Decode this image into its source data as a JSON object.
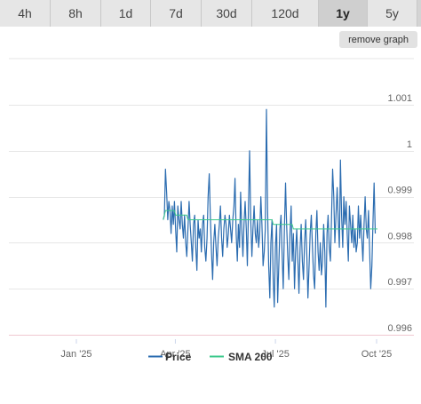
{
  "tabs": [
    {
      "label": "4h",
      "active": false
    },
    {
      "label": "8h",
      "active": false
    },
    {
      "label": "1d",
      "active": false
    },
    {
      "label": "7d",
      "active": false
    },
    {
      "label": "30d",
      "active": false
    },
    {
      "label": "120d",
      "active": false
    },
    {
      "label": "1y",
      "active": true
    },
    {
      "label": "5y",
      "active": false
    }
  ],
  "remove_graph_label": "remove graph",
  "colors": {
    "price": "#2b6cb0",
    "sma": "#3cc98c",
    "grid": "#e6e6e6",
    "grid_bottom": "#f0c8d0"
  },
  "chart_data": {
    "type": "line",
    "x_ticks": [
      "Jan '25",
      "Apr '25",
      "Jul '25",
      "Oct '25"
    ],
    "y_ticks": [
      0.996,
      0.997,
      0.998,
      0.999,
      1.0,
      1.001
    ],
    "y_tick_labels": [
      "0.996",
      "0.997",
      "0.998",
      "0.999",
      "1",
      "1.001"
    ],
    "ylim": [
      0.996,
      1.0015
    ],
    "x_range_days": [
      -85,
      324
    ],
    "grid": true,
    "legend": "bottom-center",
    "series": [
      {
        "name": "Price",
        "start_day": 79,
        "step_days": 1.02,
        "values": [
          0.9985,
          0.9986,
          0.9996,
          0.9991,
          0.9985,
          0.9989,
          0.9987,
          0.9982,
          0.9988,
          0.9984,
          0.9989,
          0.9983,
          0.9978,
          0.9988,
          0.9985,
          0.9983,
          0.9989,
          0.9984,
          0.9981,
          0.9986,
          0.998,
          0.9977,
          0.9983,
          0.9989,
          0.9984,
          0.998,
          0.9976,
          0.9984,
          0.9986,
          0.9979,
          0.9974,
          0.9985,
          0.9981,
          0.9983,
          0.9978,
          0.9984,
          0.9986,
          0.9979,
          0.9976,
          0.9981,
          0.999,
          0.9995,
          0.9986,
          0.9978,
          0.9972,
          0.998,
          0.9984,
          0.9979,
          0.9975,
          0.9981,
          0.9984,
          0.9988,
          0.9981,
          0.9977,
          0.9983,
          0.9986,
          0.9984,
          0.9979,
          0.9982,
          0.9986,
          0.9983,
          0.998,
          0.9985,
          0.9988,
          0.9994,
          0.9982,
          0.9976,
          0.9984,
          0.9979,
          0.9991,
          0.9983,
          0.9977,
          0.9984,
          0.9989,
          0.9983,
          0.9975,
          0.9988,
          1.0,
          0.9985,
          0.9977,
          0.9983,
          0.9988,
          0.9982,
          0.998,
          0.9985,
          0.9979,
          0.9982,
          0.999,
          0.9984,
          0.9975,
          0.9978,
          0.9983,
          1.0009,
          0.9987,
          0.9975,
          0.9968,
          0.998,
          0.9985,
          0.9972,
          0.9966,
          0.9979,
          0.9984,
          0.9967,
          0.9975,
          0.9983,
          0.9986,
          0.9977,
          0.997,
          0.9983,
          0.9993,
          0.9984,
          0.9977,
          0.9972,
          0.9982,
          0.9988,
          0.9976,
          0.9982,
          0.997,
          0.9978,
          0.9983,
          0.9976,
          0.9969,
          0.9979,
          0.9984,
          0.9976,
          0.9972,
          0.998,
          0.9985,
          0.9977,
          0.9968,
          0.9975,
          0.9982,
          0.9986,
          0.9979,
          0.9973,
          0.997,
          0.9982,
          0.9987,
          0.9978,
          0.9974,
          0.998,
          0.9973,
          0.9976,
          0.9984,
          0.9978,
          0.9966,
          0.9982,
          0.9986,
          0.9979,
          0.9976,
          0.9985,
          0.9996,
          0.999,
          0.998,
          0.9986,
          0.9992,
          0.9985,
          0.9979,
          0.9998,
          0.9986,
          0.9979,
          0.999,
          0.9984,
          0.9989,
          0.9982,
          0.9976,
          0.9988,
          0.9984,
          0.998,
          0.9986,
          0.9979,
          0.9983,
          0.9978,
          0.998,
          0.9988,
          0.9981,
          0.9986,
          0.9981,
          0.9976,
          0.9984,
          0.999,
          0.9983,
          0.9981,
          0.9987,
          0.9978,
          0.997,
          0.9975,
          0.9985,
          0.9993,
          0.9982
        ]
      },
      {
        "name": "SMA 200",
        "start_day": 79,
        "step_days": 1.02,
        "values": [
          0.9985,
          0.9986,
          0.9987,
          0.9987,
          0.9987,
          0.9987,
          0.9987,
          0.9987,
          0.9987,
          0.9987,
          0.9987,
          0.9986,
          0.9986,
          0.9986,
          0.9986,
          0.9986,
          0.9986,
          0.9986,
          0.9986,
          0.9986,
          0.9986,
          0.9986,
          0.9985,
          0.9985,
          0.9985,
          0.9985,
          0.9985,
          0.9985,
          0.9985,
          0.9985,
          0.9985,
          0.9985,
          0.9985,
          0.9985,
          0.9985,
          0.9985,
          0.9985,
          0.9985,
          0.9985,
          0.9985,
          0.9985,
          0.9985,
          0.9985,
          0.9985,
          0.9985,
          0.9985,
          0.9985,
          0.9985,
          0.9985,
          0.9985,
          0.9985,
          0.9985,
          0.9985,
          0.9985,
          0.9985,
          0.9985,
          0.9985,
          0.9985,
          0.9985,
          0.9985,
          0.9985,
          0.9985,
          0.9985,
          0.9985,
          0.9985,
          0.9985,
          0.9985,
          0.9985,
          0.9985,
          0.9985,
          0.9985,
          0.9985,
          0.9985,
          0.9985,
          0.9985,
          0.9985,
          0.9985,
          0.9985,
          0.9985,
          0.9985,
          0.9985,
          0.9985,
          0.9985,
          0.9985,
          0.9985,
          0.9985,
          0.9985,
          0.9985,
          0.9985,
          0.9985,
          0.9985,
          0.9985,
          0.9985,
          0.9985,
          0.9985,
          0.9985,
          0.9985,
          0.9985,
          0.9984,
          0.9984,
          0.9984,
          0.9984,
          0.9984,
          0.9984,
          0.9984,
          0.9984,
          0.9984,
          0.9984,
          0.9984,
          0.9984,
          0.9984,
          0.9984,
          0.9984,
          0.9984,
          0.9984,
          0.9984,
          0.9983,
          0.9983,
          0.9983,
          0.9983,
          0.9983,
          0.9983,
          0.9983,
          0.9983,
          0.9983,
          0.9983,
          0.9983,
          0.9983,
          0.9983,
          0.9983,
          0.9983,
          0.9983,
          0.9983,
          0.9983,
          0.9983,
          0.9983,
          0.9983,
          0.9983,
          0.9983,
          0.9983,
          0.9983,
          0.9983,
          0.9983,
          0.9983,
          0.9983,
          0.9983,
          0.9983,
          0.9983,
          0.9983,
          0.9983,
          0.9983,
          0.9983,
          0.9983,
          0.9983,
          0.9983,
          0.9983,
          0.9983,
          0.9983,
          0.9983,
          0.9983,
          0.9983,
          0.9983,
          0.9983,
          0.9983,
          0.9983,
          0.9983,
          0.9983,
          0.9983,
          0.9983,
          0.9983,
          0.9983,
          0.9983,
          0.9983,
          0.9983,
          0.9983,
          0.9983,
          0.9983,
          0.9983,
          0.9983,
          0.9983,
          0.9983,
          0.9983,
          0.9983,
          0.9983,
          0.9983,
          0.9983,
          0.9983,
          0.9983,
          0.9983,
          0.9983,
          0.9983,
          0.9983
        ]
      }
    ]
  }
}
